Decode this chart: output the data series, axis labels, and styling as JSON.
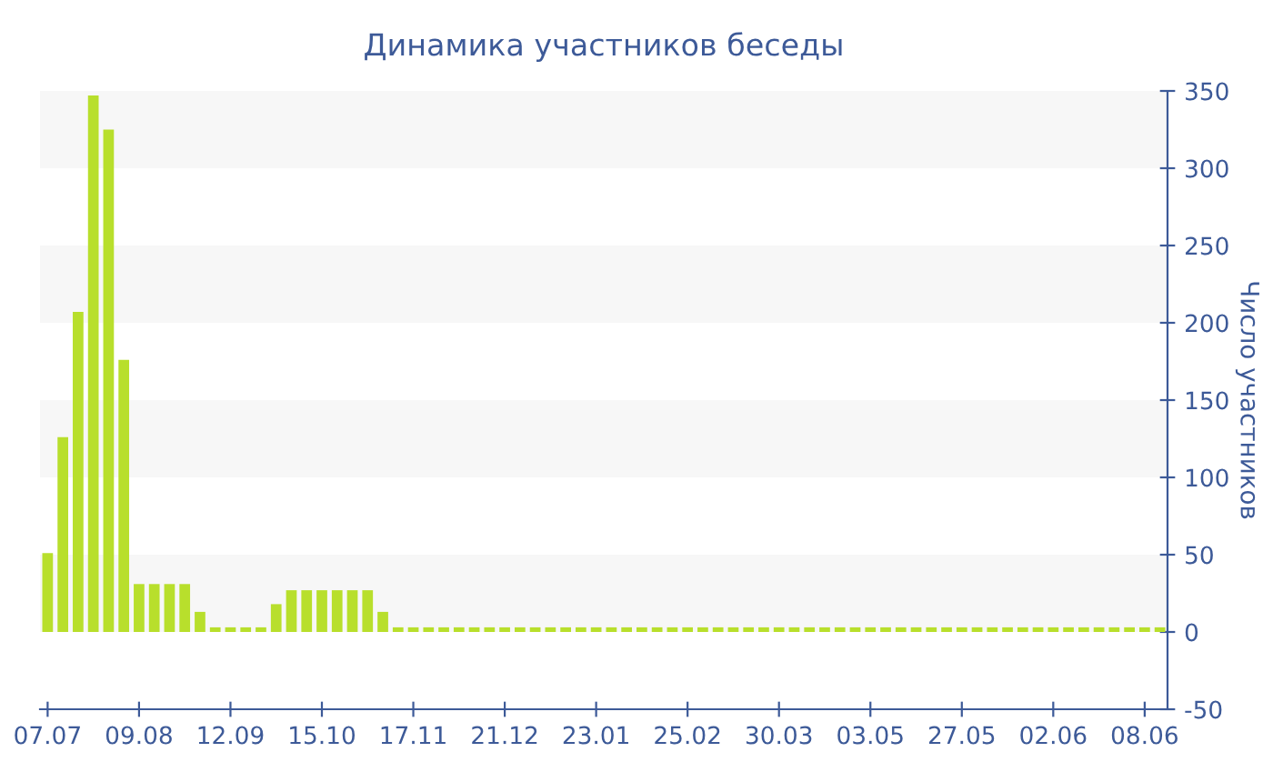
{
  "chart_data": {
    "type": "bar",
    "title": "Динамика участников беседы",
    "ylabel": "Число участников",
    "categories": [
      "07.07",
      null,
      null,
      null,
      null,
      null,
      "09.08",
      null,
      null,
      null,
      null,
      null,
      "12.09",
      null,
      null,
      null,
      null,
      null,
      "15.10",
      null,
      null,
      null,
      null,
      null,
      "17.11",
      null,
      null,
      null,
      null,
      null,
      "21.12",
      null,
      null,
      null,
      null,
      null,
      "23.01",
      null,
      null,
      null,
      null,
      null,
      "25.02",
      null,
      null,
      null,
      null,
      null,
      "30.03",
      null,
      null,
      null,
      null,
      null,
      "03.05",
      null,
      null,
      null,
      null,
      null,
      "27.05",
      null,
      null,
      null,
      null,
      null,
      "02.06",
      null,
      null,
      null,
      null,
      null,
      "08.06",
      null
    ],
    "values": [
      51,
      126,
      207,
      347,
      325,
      176,
      31,
      31,
      31,
      31,
      13,
      3,
      3,
      3,
      3,
      18,
      27,
      27,
      27,
      27,
      27,
      27,
      13,
      3,
      3,
      3,
      3,
      3,
      3,
      3,
      3,
      3,
      3,
      3,
      3,
      3,
      3,
      3,
      3,
      3,
      3,
      3,
      3,
      3,
      3,
      3,
      3,
      3,
      3,
      3,
      3,
      3,
      3,
      3,
      3,
      3,
      3,
      3,
      3,
      3,
      3,
      3,
      3,
      3,
      3,
      3,
      3,
      3,
      3,
      3,
      3,
      3,
      3,
      3
    ],
    "color": "#b8df2c",
    "ylim": [
      -50,
      350
    ],
    "yticks": [
      -50,
      0,
      50,
      100,
      150,
      200,
      250,
      300,
      350
    ],
    "legend": false
  }
}
